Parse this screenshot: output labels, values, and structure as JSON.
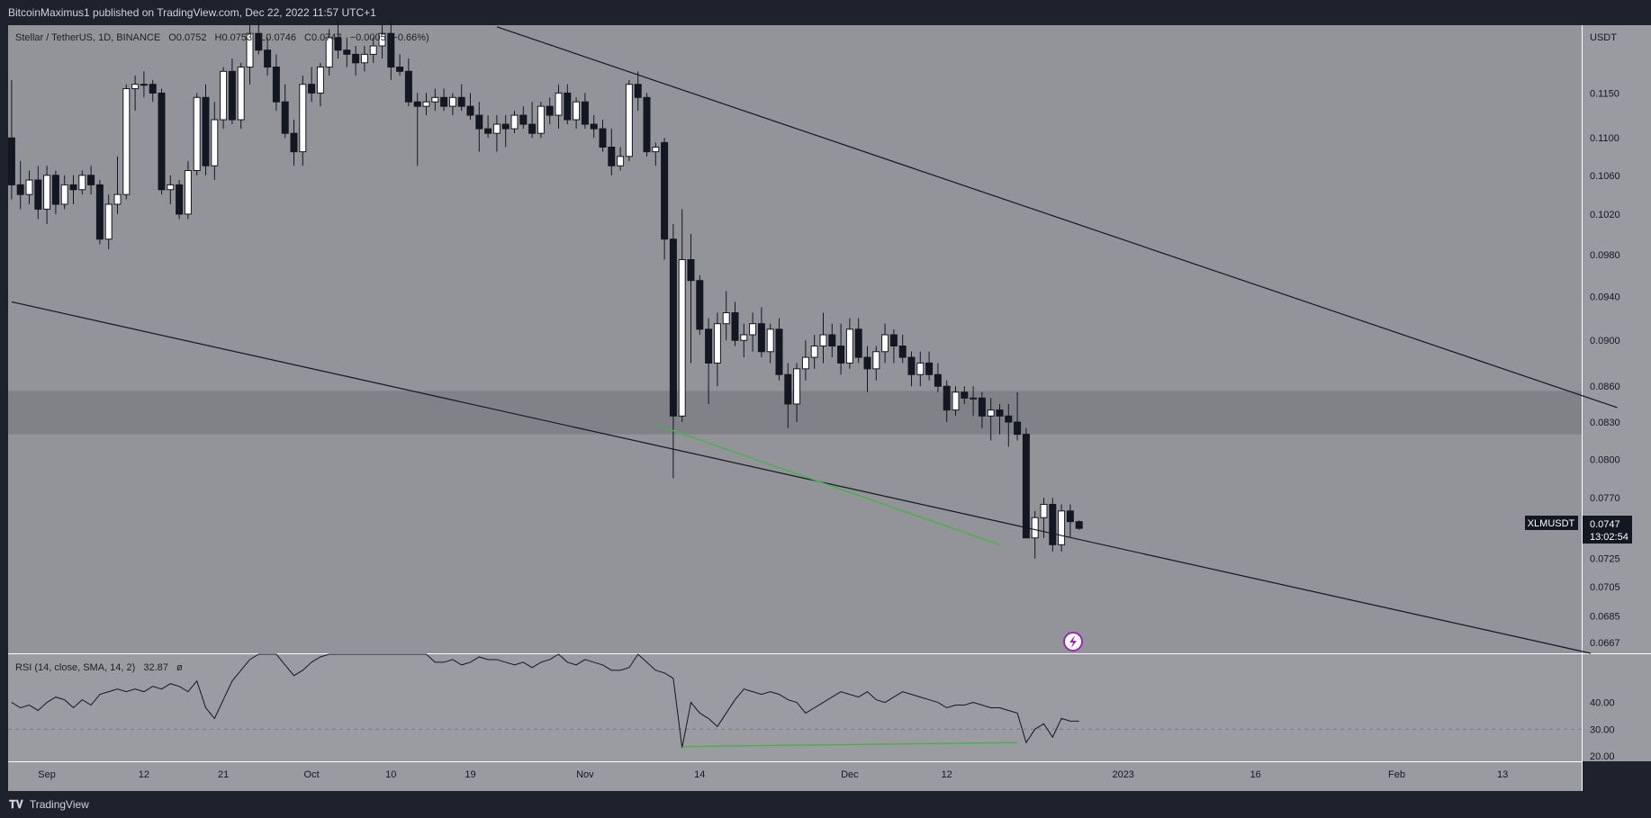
{
  "header": {
    "published_by": "BitcoinMaximus1 published on TradingView.com, Dec 22, 2022 11:57 UTC+1"
  },
  "footer": {
    "brand": "TradingView"
  },
  "colors": {
    "chart_bg": "#939499",
    "zone": "#818288",
    "rsi_bg": "#9b9ca1",
    "axis_bg": "#9a9ba0",
    "up_candle": "#ffffff",
    "down_candle": "#131722",
    "divergence": "#4caf50",
    "price_tag": "#131722"
  },
  "chart_data": [
    {
      "type": "candlestick",
      "legend": {
        "symbol": "Stellar / TetherUS, 1D, BINANCE",
        "o": "O0.0752",
        "h": "H0.0753",
        "l": "L0.0746",
        "c": "C0.0747",
        "change": "−0.0005 (−0.66%)"
      },
      "y_axis_unit": "USDT",
      "y_ticks": [
        "0.1150",
        "0.1100",
        "0.1060",
        "0.1020",
        "0.0980",
        "0.0940",
        "0.0900",
        "0.0860",
        "0.0830",
        "0.0800",
        "0.0770",
        "0.0725",
        "0.0705",
        "0.0685",
        "0.0667"
      ],
      "x_ticks": [
        "Sep",
        "12",
        "21",
        "Oct",
        "10",
        "19",
        "Nov",
        "14",
        "Dec",
        "12",
        "2023",
        "16",
        "Feb",
        "13"
      ],
      "ylim": [
        0.066,
        0.123
      ],
      "x_start": "2022-08-28",
      "candles_ohlc": [
        [
          0.11,
          0.1165,
          0.1035,
          0.105
        ],
        [
          0.105,
          0.1075,
          0.1025,
          0.104
        ],
        [
          0.104,
          0.1065,
          0.103,
          0.1055
        ],
        [
          0.1055,
          0.107,
          0.1015,
          0.1025
        ],
        [
          0.1025,
          0.107,
          0.101,
          0.106
        ],
        [
          0.106,
          0.1065,
          0.102,
          0.103
        ],
        [
          0.103,
          0.106,
          0.1025,
          0.105
        ],
        [
          0.105,
          0.106,
          0.103,
          0.1045
        ],
        [
          0.1045,
          0.1065,
          0.104,
          0.106
        ],
        [
          0.106,
          0.107,
          0.104,
          0.105
        ],
        [
          0.105,
          0.1055,
          0.099,
          0.0995
        ],
        [
          0.0995,
          0.104,
          0.0985,
          0.103
        ],
        [
          0.103,
          0.108,
          0.102,
          0.104
        ],
        [
          0.104,
          0.116,
          0.1035,
          0.1155
        ],
        [
          0.1155,
          0.117,
          0.113,
          0.116
        ],
        [
          0.116,
          0.1175,
          0.1145,
          0.116
        ],
        [
          0.116,
          0.1165,
          0.114,
          0.115
        ],
        [
          0.115,
          0.1155,
          0.104,
          0.1045
        ],
        [
          0.1045,
          0.106,
          0.103,
          0.105
        ],
        [
          0.105,
          0.1055,
          0.1015,
          0.102
        ],
        [
          0.102,
          0.1075,
          0.1015,
          0.1065
        ],
        [
          0.1065,
          0.115,
          0.106,
          0.1145
        ],
        [
          0.1145,
          0.116,
          0.106,
          0.107
        ],
        [
          0.107,
          0.114,
          0.1055,
          0.112
        ],
        [
          0.112,
          0.118,
          0.111,
          0.1175
        ],
        [
          0.1175,
          0.119,
          0.1115,
          0.112
        ],
        [
          0.112,
          0.1185,
          0.111,
          0.118
        ],
        [
          0.118,
          0.123,
          0.116,
          0.122
        ],
        [
          0.122,
          0.124,
          0.1195,
          0.12
        ],
        [
          0.12,
          0.1215,
          0.117,
          0.118
        ],
        [
          0.118,
          0.1195,
          0.113,
          0.114
        ],
        [
          0.114,
          0.116,
          0.11,
          0.1105
        ],
        [
          0.1105,
          0.112,
          0.107,
          0.1085
        ],
        [
          0.1085,
          0.117,
          0.107,
          0.116
        ],
        [
          0.116,
          0.118,
          0.114,
          0.115
        ],
        [
          0.115,
          0.1185,
          0.1135,
          0.118
        ],
        [
          0.118,
          0.1225,
          0.117,
          0.1215
        ],
        [
          0.1215,
          0.1235,
          0.119,
          0.12
        ],
        [
          0.12,
          0.1215,
          0.118,
          0.1195
        ],
        [
          0.1195,
          0.1205,
          0.117,
          0.1185
        ],
        [
          0.1185,
          0.1205,
          0.1175,
          0.1195
        ],
        [
          0.1195,
          0.1215,
          0.1185,
          0.1205
        ],
        [
          0.1205,
          0.123,
          0.119,
          0.122
        ],
        [
          0.122,
          0.1235,
          0.1165,
          0.118
        ],
        [
          0.118,
          0.1195,
          0.117,
          0.1175
        ],
        [
          0.1175,
          0.119,
          0.1135,
          0.114
        ],
        [
          0.114,
          0.115,
          0.107,
          0.1135
        ],
        [
          0.1135,
          0.115,
          0.1125,
          0.114
        ],
        [
          0.114,
          0.1155,
          0.113,
          0.1145
        ],
        [
          0.1145,
          0.1155,
          0.113,
          0.1135
        ],
        [
          0.1135,
          0.115,
          0.1125,
          0.1145
        ],
        [
          0.1145,
          0.116,
          0.113,
          0.1135
        ],
        [
          0.1135,
          0.115,
          0.112,
          0.1125
        ],
        [
          0.1125,
          0.114,
          0.1085,
          0.111
        ],
        [
          0.111,
          0.1125,
          0.11,
          0.1105
        ],
        [
          0.1105,
          0.1125,
          0.1085,
          0.1115
        ],
        [
          0.1115,
          0.1125,
          0.109,
          0.111
        ],
        [
          0.111,
          0.113,
          0.1105,
          0.1125
        ],
        [
          0.1125,
          0.1135,
          0.111,
          0.1115
        ],
        [
          0.1115,
          0.114,
          0.11,
          0.1105
        ],
        [
          0.1105,
          0.114,
          0.11,
          0.1135
        ],
        [
          0.1135,
          0.1145,
          0.1115,
          0.1125
        ],
        [
          0.1125,
          0.116,
          0.111,
          0.115
        ],
        [
          0.115,
          0.116,
          0.1115,
          0.112
        ],
        [
          0.112,
          0.1145,
          0.111,
          0.114
        ],
        [
          0.114,
          0.115,
          0.111,
          0.1115
        ],
        [
          0.1115,
          0.1125,
          0.11,
          0.111
        ],
        [
          0.111,
          0.112,
          0.1085,
          0.109
        ],
        [
          0.109,
          0.111,
          0.106,
          0.107
        ],
        [
          0.107,
          0.109,
          0.1065,
          0.108
        ],
        [
          0.108,
          0.1165,
          0.1075,
          0.116
        ],
        [
          0.116,
          0.1175,
          0.113,
          0.1145
        ],
        [
          0.1145,
          0.115,
          0.108,
          0.1085
        ],
        [
          0.1085,
          0.1095,
          0.107,
          0.109
        ],
        [
          0.1095,
          0.11,
          0.0975,
          0.0995
        ],
        [
          0.0995,
          0.101,
          0.0785,
          0.0835
        ],
        [
          0.0835,
          0.1025,
          0.083,
          0.0975
        ],
        [
          0.0975,
          0.1,
          0.088,
          0.0955
        ],
        [
          0.0955,
          0.096,
          0.0905,
          0.091
        ],
        [
          0.091,
          0.092,
          0.0845,
          0.088
        ],
        [
          0.088,
          0.0925,
          0.086,
          0.0915
        ],
        [
          0.0915,
          0.0945,
          0.09,
          0.0925
        ],
        [
          0.0925,
          0.0935,
          0.0895,
          0.09
        ],
        [
          0.09,
          0.0915,
          0.0885,
          0.0905
        ],
        [
          0.0905,
          0.0925,
          0.089,
          0.0915
        ],
        [
          0.0915,
          0.093,
          0.0885,
          0.089
        ],
        [
          0.089,
          0.0915,
          0.088,
          0.091
        ],
        [
          0.091,
          0.092,
          0.0865,
          0.087
        ],
        [
          0.087,
          0.088,
          0.0825,
          0.0845
        ],
        [
          0.0845,
          0.088,
          0.083,
          0.0875
        ],
        [
          0.0875,
          0.09,
          0.0865,
          0.0885
        ],
        [
          0.0885,
          0.0905,
          0.0875,
          0.0895
        ],
        [
          0.0895,
          0.0925,
          0.088,
          0.0905
        ],
        [
          0.0905,
          0.0915,
          0.0885,
          0.0895
        ],
        [
          0.0895,
          0.0915,
          0.087,
          0.088
        ],
        [
          0.088,
          0.092,
          0.0875,
          0.091
        ],
        [
          0.091,
          0.092,
          0.088,
          0.0885
        ],
        [
          0.0885,
          0.0895,
          0.0855,
          0.0875
        ],
        [
          0.0875,
          0.0895,
          0.0865,
          0.089
        ],
        [
          0.089,
          0.0915,
          0.088,
          0.0905
        ],
        [
          0.0905,
          0.091,
          0.088,
          0.0895
        ],
        [
          0.0895,
          0.0905,
          0.088,
          0.0885
        ],
        [
          0.0885,
          0.089,
          0.086,
          0.087
        ],
        [
          0.087,
          0.089,
          0.086,
          0.088
        ],
        [
          0.088,
          0.089,
          0.0865,
          0.087
        ],
        [
          0.087,
          0.088,
          0.0855,
          0.086
        ],
        [
          0.086,
          0.0865,
          0.083,
          0.084
        ],
        [
          0.084,
          0.086,
          0.0835,
          0.0855
        ],
        [
          0.0855,
          0.086,
          0.0845,
          0.085
        ],
        [
          0.085,
          0.086,
          0.0835,
          0.085
        ],
        [
          0.085,
          0.0855,
          0.0825,
          0.0835
        ],
        [
          0.0835,
          0.085,
          0.0815,
          0.084
        ],
        [
          0.084,
          0.0845,
          0.082,
          0.0835
        ],
        [
          0.0835,
          0.0845,
          0.081,
          0.083
        ],
        [
          0.083,
          0.0855,
          0.0815,
          0.082
        ],
        [
          0.082,
          0.0825,
          0.074,
          0.074
        ],
        [
          0.074,
          0.076,
          0.0725,
          0.0755
        ],
        [
          0.0755,
          0.077,
          0.074,
          0.0765
        ],
        [
          0.0765,
          0.077,
          0.073,
          0.0735
        ],
        [
          0.0735,
          0.0765,
          0.073,
          0.076
        ],
        [
          0.076,
          0.0765,
          0.074,
          0.0752
        ],
        [
          0.0752,
          0.0753,
          0.0746,
          0.0747
        ]
      ],
      "overlays": {
        "zone": [
          0.082,
          0.0856
        ],
        "channel_upper": [
          [
            "2022-10-22",
            0.1228
          ],
          [
            "2023-02-26",
            0.0842
          ]
        ],
        "channel_lower": [
          [
            "2022-08-28",
            0.0935
          ],
          [
            "2023-02-23",
            0.066
          ]
        ],
        "divergence_price": [
          [
            "2022-11-09",
            0.0828
          ],
          [
            "2022-12-18",
            0.0735
          ]
        ]
      },
      "price_tag": {
        "symbol": "XLMUSDT",
        "price": "0.0747",
        "countdown": "13:02:54"
      }
    },
    {
      "type": "line",
      "legend": {
        "label": "RSI (14, close, SMA, 14, 2)",
        "value": "32.87",
        "extra": "ø"
      },
      "y_ticks": [
        "40.00",
        "30.00",
        "20.00"
      ],
      "ylim": [
        18,
        58
      ],
      "reference_level": 30,
      "values": [
        40,
        38,
        39,
        37,
        40,
        42,
        41,
        38,
        41,
        39,
        43,
        44,
        45,
        44,
        45,
        44,
        46,
        45,
        47,
        46,
        44,
        48,
        38,
        34,
        41,
        48,
        52,
        56,
        62,
        63,
        58,
        54,
        50,
        52,
        55,
        57,
        58,
        59,
        60,
        62,
        63,
        64,
        65,
        63,
        62,
        61,
        60,
        58,
        55,
        55,
        56,
        54,
        55,
        57,
        56,
        56,
        55,
        54,
        55,
        53,
        55,
        56,
        58,
        55,
        54,
        56,
        55,
        54,
        52,
        52,
        53,
        58,
        55,
        52,
        51,
        49,
        23,
        40,
        36,
        34,
        31,
        36,
        41,
        45,
        44,
        43,
        44,
        43,
        41,
        40,
        36,
        38,
        40,
        42,
        44,
        43,
        42,
        44,
        41,
        40,
        42,
        44,
        43,
        42,
        41,
        40,
        38,
        39,
        39,
        40,
        39,
        38,
        38,
        37,
        36,
        25,
        30,
        32,
        27,
        34,
        33,
        33
      ],
      "divergence_rsi": [
        [
          76,
          23.5
        ],
        [
          114,
          25
        ]
      ]
    }
  ]
}
